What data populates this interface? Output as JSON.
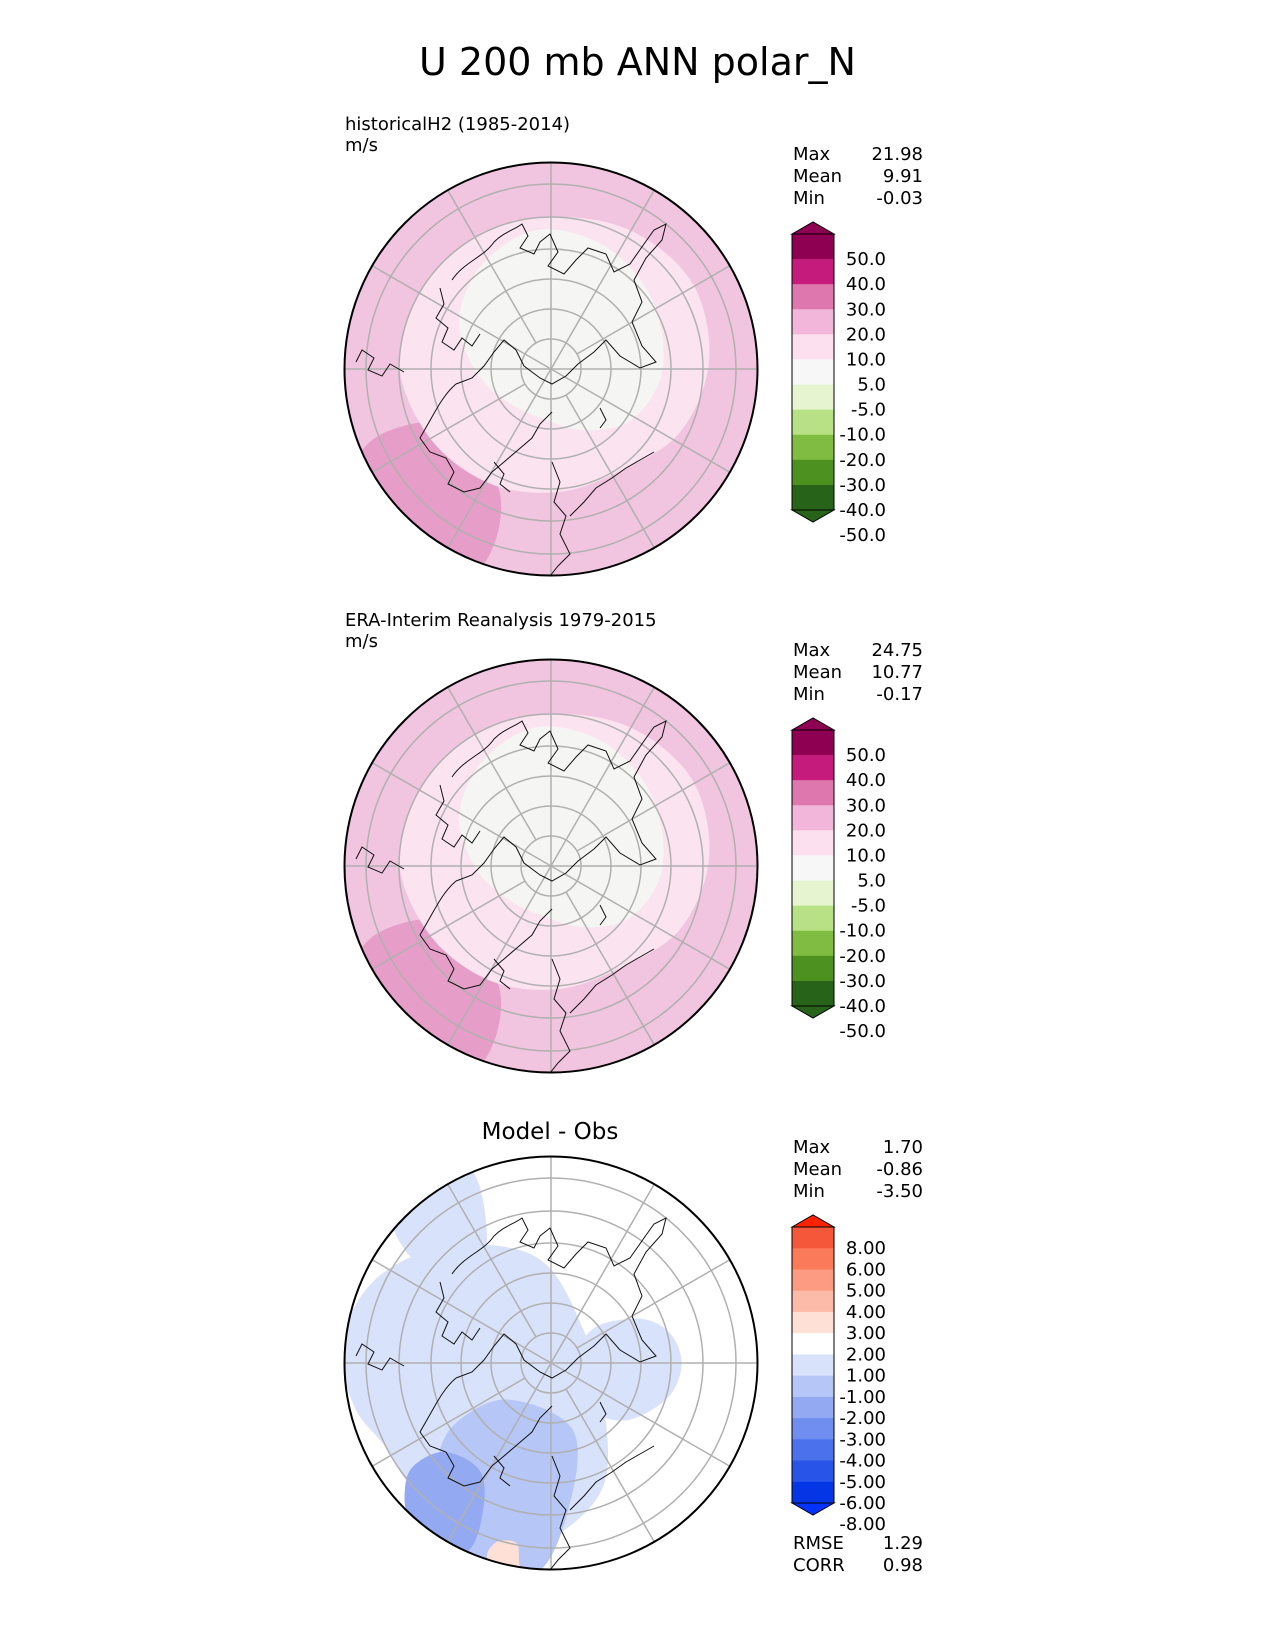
{
  "title": "U 200 mb ANN polar_N",
  "panels": [
    {
      "id": "test",
      "title_line1": "historicalH2 (1985-2014)",
      "title_line2": "m/s",
      "stats": [
        {
          "label": "Max",
          "value": "21.98"
        },
        {
          "label": "Mean",
          "value": "9.91"
        },
        {
          "label": "Min",
          "value": "-0.03"
        }
      ],
      "colorbar": {
        "colors": [
          "#8e0152",
          "#c51b7d",
          "#de77ae",
          "#f1b6da",
          "#fde0ef",
          "#f7f7f7",
          "#e6f5d0",
          "#b8e186",
          "#7fbc41",
          "#4d9221",
          "#276419"
        ],
        "ends": [
          "#8e0152",
          "#276419"
        ],
        "labels": [
          "50.0",
          "40.0",
          "30.0",
          "20.0",
          "10.0",
          "5.0",
          "-5.0",
          "-10.0",
          "-20.0",
          "-30.0",
          "-40.0",
          "-50.0"
        ]
      },
      "map_colors": {
        "base": "#f1c4e0",
        "mid": "#fbe3f0",
        "core": "#f5f5f3",
        "edge": "#e69ec8"
      }
    },
    {
      "id": "reference",
      "title_line1": "ERA-Interim Reanalysis 1979-2015",
      "title_line2": "m/s",
      "stats": [
        {
          "label": "Max",
          "value": "24.75"
        },
        {
          "label": "Mean",
          "value": "10.77"
        },
        {
          "label": "Min",
          "value": "-0.17"
        }
      ],
      "colorbar": {
        "colors": [
          "#8e0152",
          "#c51b7d",
          "#de77ae",
          "#f1b6da",
          "#fde0ef",
          "#f7f7f7",
          "#e6f5d0",
          "#b8e186",
          "#7fbc41",
          "#4d9221",
          "#276419"
        ],
        "ends": [
          "#8e0152",
          "#276419"
        ],
        "labels": [
          "50.0",
          "40.0",
          "30.0",
          "20.0",
          "10.0",
          "5.0",
          "-5.0",
          "-10.0",
          "-20.0",
          "-30.0",
          "-40.0",
          "-50.0"
        ]
      },
      "map_colors": {
        "base": "#f1c4e0",
        "mid": "#fbe3f0",
        "core": "#f5f5f3",
        "edge": "#e69ec8"
      }
    },
    {
      "id": "diff",
      "title_line1": "Model - Obs",
      "title_line2": "",
      "stats": [
        {
          "label": "Max",
          "value": "1.70"
        },
        {
          "label": "Mean",
          "value": "-0.86"
        },
        {
          "label": "Min",
          "value": "-3.50"
        }
      ],
      "extra_stats": [
        {
          "label": "RMSE",
          "value": "1.29"
        },
        {
          "label": "CORR",
          "value": "0.98"
        }
      ],
      "colorbar": {
        "colors": [
          "#f4573a",
          "#fb7a5a",
          "#fc9b81",
          "#fcbba9",
          "#fee0d6",
          "#ffffff",
          "#d9e2fb",
          "#b6c6f7",
          "#93aaf3",
          "#6f8ef0",
          "#4b72ec",
          "#2855e8",
          "#0536e6"
        ],
        "ends": [
          "#ff2200",
          "#0033ff"
        ],
        "labels": [
          "8.00",
          "6.00",
          "5.00",
          "4.00",
          "3.00",
          "2.00",
          "1.00",
          "-1.00",
          "-2.00",
          "-3.00",
          "-4.00",
          "-5.00",
          "-6.00",
          "-8.00"
        ]
      },
      "map_colors": {
        "base": "#ffffff",
        "mid": "#d9e2fb",
        "core": "#ffffff",
        "edge": "#b6c6f7"
      }
    }
  ]
}
